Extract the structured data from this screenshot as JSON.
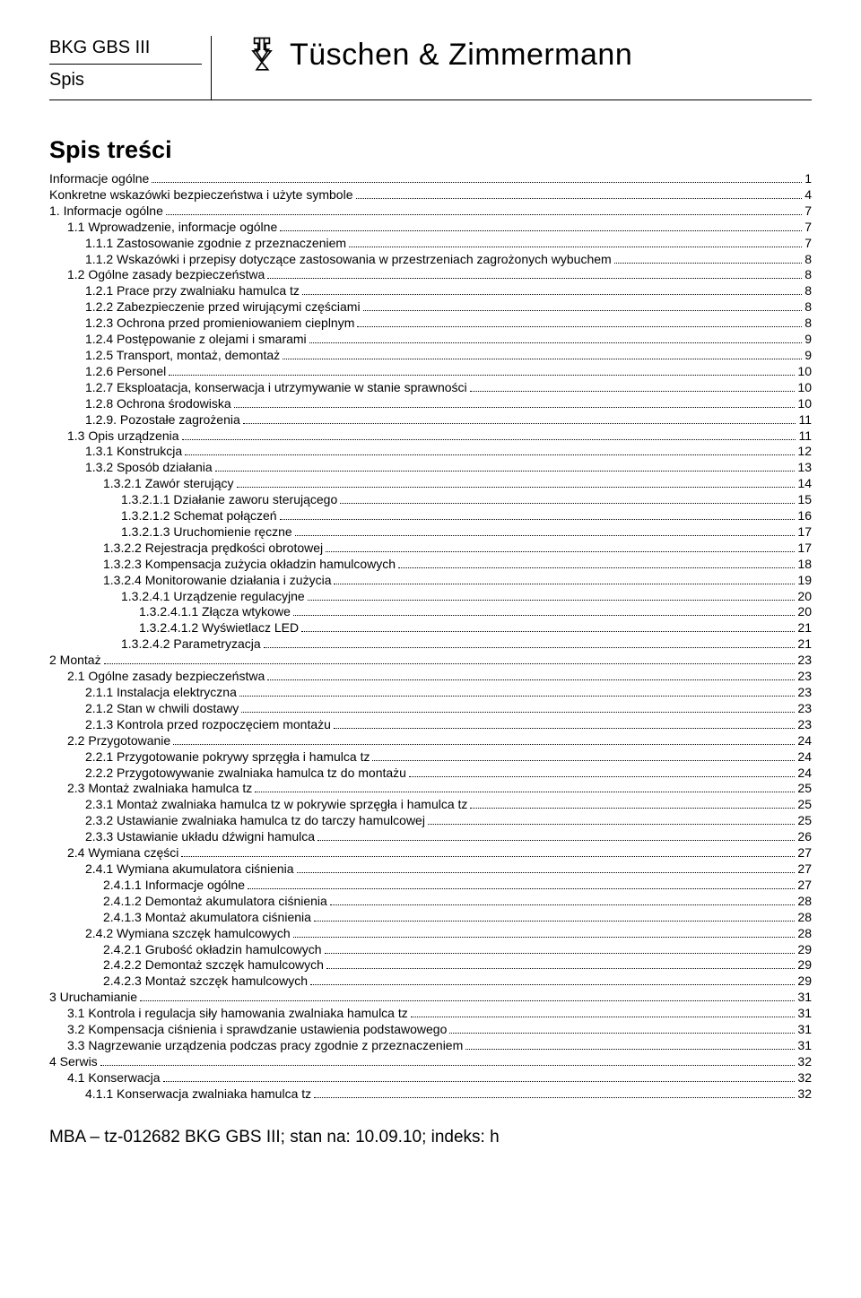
{
  "header": {
    "left1": "BKG GBS III",
    "left2": "Spis",
    "brand": "Tüschen & Zimmermann"
  },
  "tocTitle": "Spis treści",
  "indentUnit": 20,
  "toc": [
    {
      "label": "Informacje ogólne",
      "page": "1",
      "indent": 0
    },
    {
      "label": "Konkretne wskazówki bezpieczeństwa i użyte symbole",
      "page": "4",
      "indent": 0
    },
    {
      "label": "1. Informacje ogólne",
      "page": "7",
      "indent": 0
    },
    {
      "label": "1.1 Wprowadzenie, informacje ogólne",
      "page": "7",
      "indent": 1
    },
    {
      "label": "1.1.1 Zastosowanie zgodnie z przeznaczeniem",
      "page": "7",
      "indent": 2
    },
    {
      "label": "1.1.2 Wskazówki i przepisy dotyczące zastosowania w przestrzeniach zagrożonych wybuchem",
      "page": "8",
      "indent": 2
    },
    {
      "label": "1.2 Ogólne zasady bezpieczeństwa",
      "page": "8",
      "indent": 1
    },
    {
      "label": "1.2.1 Prace przy zwalniaku hamulca tz",
      "page": "8",
      "indent": 2
    },
    {
      "label": "1.2.2 Zabezpieczenie przed wirującymi częściami",
      "page": "8",
      "indent": 2
    },
    {
      "label": "1.2.3 Ochrona przed promieniowaniem cieplnym",
      "page": "8",
      "indent": 2
    },
    {
      "label": "1.2.4 Postępowanie z olejami i smarami",
      "page": "9",
      "indent": 2
    },
    {
      "label": "1.2.5 Transport, montaż, demontaż",
      "page": "9",
      "indent": 2
    },
    {
      "label": "1.2.6 Personel",
      "page": "10",
      "indent": 2
    },
    {
      "label": "1.2.7 Eksploatacja, konserwacja i utrzymywanie w stanie sprawności",
      "page": "10",
      "indent": 2
    },
    {
      "label": "1.2.8 Ochrona środowiska",
      "page": "10",
      "indent": 2
    },
    {
      "label": "1.2.9. Pozostałe zagrożenia",
      "page": "11",
      "indent": 2
    },
    {
      "label": "1.3 Opis urządzenia",
      "page": "11",
      "indent": 1
    },
    {
      "label": "1.3.1 Konstrukcja",
      "page": "12",
      "indent": 2
    },
    {
      "label": "1.3.2 Sposób działania",
      "page": "13",
      "indent": 2
    },
    {
      "label": "1.3.2.1 Zawór sterujący",
      "page": "14",
      "indent": 3
    },
    {
      "label": "1.3.2.1.1 Działanie zaworu sterującego",
      "page": "15",
      "indent": 4
    },
    {
      "label": "1.3.2.1.2 Schemat połączeń",
      "page": "16",
      "indent": 4
    },
    {
      "label": "1.3.2.1.3 Uruchomienie ręczne",
      "page": "17",
      "indent": 4
    },
    {
      "label": "1.3.2.2 Rejestracja prędkości obrotowej",
      "page": "17",
      "indent": 3
    },
    {
      "label": "1.3.2.3 Kompensacja zużycia okładzin hamulcowych",
      "page": "18",
      "indent": 3
    },
    {
      "label": "1.3.2.4 Monitorowanie działania i zużycia",
      "page": "19",
      "indent": 3
    },
    {
      "label": "1.3.2.4.1 Urządzenie regulacyjne",
      "page": "20",
      "indent": 4
    },
    {
      "label": "1.3.2.4.1.1 Złącza wtykowe",
      "page": "20",
      "indent": 5
    },
    {
      "label": "1.3.2.4.1.2 Wyświetlacz LED",
      "page": "21",
      "indent": 5
    },
    {
      "label": "1.3.2.4.2 Parametryzacja",
      "page": "21",
      "indent": 4
    },
    {
      "label": "2 Montaż",
      "page": "23",
      "indent": 0
    },
    {
      "label": "2.1 Ogólne zasady bezpieczeństwa",
      "page": "23",
      "indent": 1
    },
    {
      "label": "2.1.1 Instalacja elektryczna",
      "page": "23",
      "indent": 2
    },
    {
      "label": "2.1.2 Stan w chwili dostawy",
      "page": "23",
      "indent": 2
    },
    {
      "label": "2.1.3 Kontrola przed rozpoczęciem montażu",
      "page": "23",
      "indent": 2
    },
    {
      "label": "2.2 Przygotowanie",
      "page": "24",
      "indent": 1
    },
    {
      "label": "2.2.1 Przygotowanie pokrywy sprzęgła i hamulca tz",
      "page": "24",
      "indent": 2
    },
    {
      "label": "2.2.2 Przygotowywanie zwalniaka hamulca tz do montażu",
      "page": "24",
      "indent": 2
    },
    {
      "label": "2.3 Montaż zwalniaka hamulca tz",
      "page": "25",
      "indent": 1
    },
    {
      "label": "2.3.1 Montaż zwalniaka hamulca tz w pokrywie sprzęgła i hamulca tz",
      "page": "25",
      "indent": 2
    },
    {
      "label": "2.3.2 Ustawianie zwalniaka hamulca tz do tarczy hamulcowej",
      "page": "25",
      "indent": 2
    },
    {
      "label": "2.3.3 Ustawianie układu dźwigni hamulca",
      "page": "26",
      "indent": 2
    },
    {
      "label": "2.4 Wymiana części",
      "page": "27",
      "indent": 1
    },
    {
      "label": "2.4.1 Wymiana akumulatora ciśnienia",
      "page": "27",
      "indent": 2
    },
    {
      "label": "2.4.1.1 Informacje ogólne",
      "page": "27",
      "indent": 3
    },
    {
      "label": "2.4.1.2 Demontaż akumulatora ciśnienia",
      "page": "28",
      "indent": 3
    },
    {
      "label": "2.4.1.3 Montaż akumulatora ciśnienia",
      "page": "28",
      "indent": 3
    },
    {
      "label": "2.4.2 Wymiana szczęk hamulcowych",
      "page": "28",
      "indent": 2
    },
    {
      "label": "2.4.2.1 Grubość okładzin hamulcowych",
      "page": "29",
      "indent": 3
    },
    {
      "label": "2.4.2.2 Demontaż szczęk hamulcowych",
      "page": "29",
      "indent": 3
    },
    {
      "label": "2.4.2.3 Montaż szczęk hamulcowych",
      "page": "29",
      "indent": 3
    },
    {
      "label": "3 Uruchamianie",
      "page": "31",
      "indent": 0
    },
    {
      "label": "3.1 Kontrola i regulacja siły hamowania zwalniaka hamulca tz",
      "page": "31",
      "indent": 1
    },
    {
      "label": "3.2 Kompensacja ciśnienia i sprawdzanie ustawienia podstawowego",
      "page": "31",
      "indent": 1
    },
    {
      "label": "3.3 Nagrzewanie urządzenia podczas pracy zgodnie z przeznaczeniem",
      "page": "31",
      "indent": 1
    },
    {
      "label": "4 Serwis",
      "page": "32",
      "indent": 0
    },
    {
      "label": "4.1 Konserwacja",
      "page": "32",
      "indent": 1
    },
    {
      "label": "4.1.1 Konserwacja zwalniaka hamulca tz",
      "page": "32",
      "indent": 2
    }
  ],
  "footer": "MBA – tz-012682 BKG GBS III; stan na: 10.09.10; indeks: h"
}
